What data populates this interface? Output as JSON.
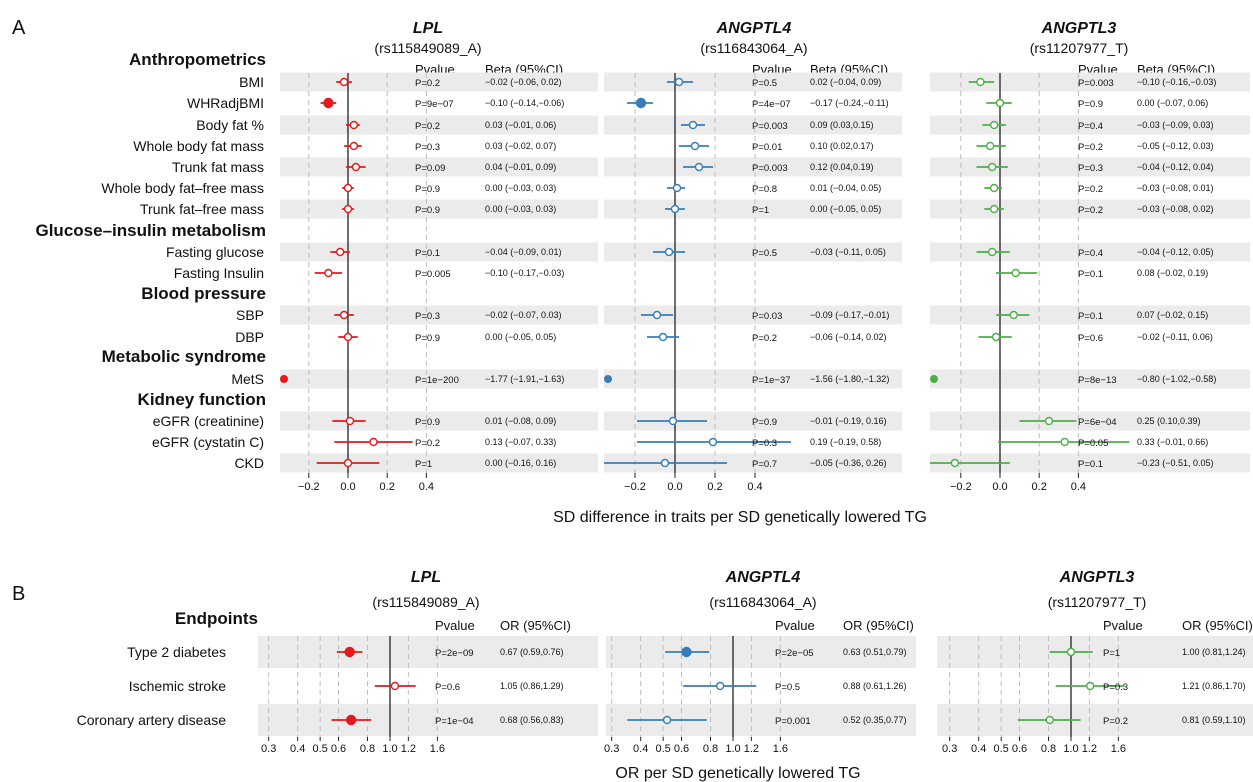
{
  "panel_a": {
    "label": "A",
    "x_axis_title": "SD difference in traits per SD genetically lowered TG",
    "pvalue_header": "Pvalue",
    "beta_header": "Beta (95%CI)",
    "groups": [
      {
        "name": "Anthropometrics",
        "traits": [
          "BMI",
          "WHRadjBMI",
          "Body fat %",
          "Whole body fat mass",
          "Trunk fat mass",
          "Whole body fat–free mass",
          "Trunk fat–free mass"
        ]
      },
      {
        "name": "Glucose–insulin metabolism",
        "traits": [
          "Fasting glucose",
          "Fasting Insulin"
        ]
      },
      {
        "name": "Blood pressure",
        "traits": [
          "SBP",
          "DBP"
        ]
      },
      {
        "name": "Metabolic syndrome",
        "traits": [
          "MetS"
        ]
      },
      {
        "name": "Kidney function",
        "traits": [
          "eGFR (creatinine)",
          "eGFR (cystatin C)",
          "CKD"
        ]
      }
    ],
    "ticks": [
      "−0.2",
      "0.0",
      "0.2",
      "0.4"
    ]
  },
  "panel_b": {
    "label": "B",
    "x_axis_title": "OR per SD genetically lowered TG",
    "group": "Endpoints",
    "pvalue_header": "Pvalue",
    "or_header": "OR (95%CI)",
    "endpoints": [
      "Type 2 diabetes",
      "Ischemic stroke",
      "Coronary artery disease"
    ],
    "ticks": [
      "0.3",
      "0.4",
      "0.5",
      "0.6",
      "0.8",
      "1.0",
      "1.2",
      "1.6"
    ]
  },
  "colors": {
    "LPL": "#e41a1c",
    "ANGPTL4": "#377eb8",
    "ANGPTL3": "#4daf4a",
    "band": "#ebebeb",
    "grid": "#bdbdbd"
  },
  "chart_data": [
    {
      "type": "scatter",
      "subtype": "forest",
      "panel": "A",
      "xlim": [
        -0.35,
        0.4
      ],
      "grid": true,
      "series": [
        {
          "name": "LPL",
          "snp": "(rs115849089_A)",
          "rows": [
            {
              "trait": "BMI",
              "est": -0.02,
              "lo": -0.06,
              "hi": 0.02,
              "p": "P=0.2",
              "ci": "−0.02 (−0.06, 0.02)",
              "sig": false
            },
            {
              "trait": "WHRadjBMI",
              "est": -0.1,
              "lo": -0.14,
              "hi": -0.06,
              "p": "P=9e−07",
              "ci": "−0.10 (−0.14,−0.06)",
              "sig": true
            },
            {
              "trait": "Body fat %",
              "est": 0.03,
              "lo": -0.01,
              "hi": 0.06,
              "p": "P=0.2",
              "ci": "0.03 (−0.01, 0.06)",
              "sig": false
            },
            {
              "trait": "Whole body fat mass",
              "est": 0.03,
              "lo": -0.02,
              "hi": 0.07,
              "p": "P=0.3",
              "ci": "0.03 (−0.02, 0.07)",
              "sig": false
            },
            {
              "trait": "Trunk fat mass",
              "est": 0.04,
              "lo": -0.01,
              "hi": 0.09,
              "p": "P=0.09",
              "ci": "0.04 (−0.01, 0.09)",
              "sig": false
            },
            {
              "trait": "Whole body fat–free mass",
              "est": 0.0,
              "lo": -0.03,
              "hi": 0.03,
              "p": "P=0.9",
              "ci": "0.00 (−0.03, 0.03)",
              "sig": false
            },
            {
              "trait": "Trunk fat–free mass",
              "est": 0.0,
              "lo": -0.03,
              "hi": 0.03,
              "p": "P=0.9",
              "ci": "0.00 (−0.03, 0.03)",
              "sig": false
            },
            {
              "trait": "Fasting glucose",
              "est": -0.04,
              "lo": -0.09,
              "hi": 0.01,
              "p": "P=0.1",
              "ci": "−0.04 (−0.09, 0.01)",
              "sig": false
            },
            {
              "trait": "Fasting Insulin",
              "est": -0.1,
              "lo": -0.17,
              "hi": -0.03,
              "p": "P=0.005",
              "ci": "−0.10 (−0.17,−0.03)",
              "sig": false
            },
            {
              "trait": "SBP",
              "est": -0.02,
              "lo": -0.07,
              "hi": 0.03,
              "p": "P=0.3",
              "ci": "−0.02 (−0.07, 0.03)",
              "sig": false
            },
            {
              "trait": "DBP",
              "est": 0.0,
              "lo": -0.05,
              "hi": 0.05,
              "p": "P=0.9",
              "ci": "0.00 (−0.05, 0.05)",
              "sig": false
            },
            {
              "trait": "MetS",
              "est": -1.77,
              "lo": -1.91,
              "hi": -1.63,
              "p": "P=1e−200",
              "ci": "−1.77 (−1.91,−1.63)",
              "sig": true
            },
            {
              "trait": "eGFR (creatinine)",
              "est": 0.01,
              "lo": -0.08,
              "hi": 0.09,
              "p": "P=0.9",
              "ci": "0.01 (−0.08, 0.09)",
              "sig": false
            },
            {
              "trait": "eGFR (cystatin C)",
              "est": 0.13,
              "lo": -0.07,
              "hi": 0.33,
              "p": "P=0.2",
              "ci": "0.13 (−0.07, 0.33)",
              "sig": false
            },
            {
              "trait": "CKD",
              "est": 0.0,
              "lo": -0.16,
              "hi": 0.16,
              "p": "P=1",
              "ci": "0.00 (−0.16, 0.16)",
              "sig": false
            }
          ]
        },
        {
          "name": "ANGPTL4",
          "snp": "(rs116843064_A)",
          "rows": [
            {
              "trait": "BMI",
              "est": 0.02,
              "lo": -0.04,
              "hi": 0.09,
              "p": "P=0.5",
              "ci": "0.02 (−0.04, 0.09)",
              "sig": false
            },
            {
              "trait": "WHRadjBMI",
              "est": -0.17,
              "lo": -0.24,
              "hi": -0.11,
              "p": "P=4e−07",
              "ci": "−0.17 (−0.24,−0.11)",
              "sig": true
            },
            {
              "trait": "Body fat %",
              "est": 0.09,
              "lo": 0.03,
              "hi": 0.15,
              "p": "P=0.003",
              "ci": "0.09 (0.03,0.15)",
              "sig": false
            },
            {
              "trait": "Whole body fat mass",
              "est": 0.1,
              "lo": 0.02,
              "hi": 0.17,
              "p": "P=0.01",
              "ci": "0.10 (0.02,0.17)",
              "sig": false
            },
            {
              "trait": "Trunk fat mass",
              "est": 0.12,
              "lo": 0.04,
              "hi": 0.19,
              "p": "P=0.003",
              "ci": "0.12 (0.04,0.19)",
              "sig": false
            },
            {
              "trait": "Whole body fat–free mass",
              "est": 0.01,
              "lo": -0.04,
              "hi": 0.05,
              "p": "P=0.8",
              "ci": "0.01 (−0.04, 0.05)",
              "sig": false
            },
            {
              "trait": "Trunk fat–free mass",
              "est": 0.0,
              "lo": -0.05,
              "hi": 0.05,
              "p": "P=1",
              "ci": "0.00 (−0.05, 0.05)",
              "sig": false
            },
            {
              "trait": "Fasting glucose",
              "est": -0.03,
              "lo": -0.11,
              "hi": 0.05,
              "p": "P=0.5",
              "ci": "−0.03 (−0.11, 0.05)",
              "sig": false
            },
            {
              "trait": "Fasting Insulin",
              "est": null,
              "lo": null,
              "hi": null,
              "p": "",
              "ci": "",
              "sig": false
            },
            {
              "trait": "SBP",
              "est": -0.09,
              "lo": -0.17,
              "hi": -0.01,
              "p": "P=0.03",
              "ci": "−0.09 (−0.17,−0.01)",
              "sig": false
            },
            {
              "trait": "DBP",
              "est": -0.06,
              "lo": -0.14,
              "hi": 0.02,
              "p": "P=0.2",
              "ci": "−0.06 (−0.14, 0.02)",
              "sig": false
            },
            {
              "trait": "MetS",
              "est": -1.56,
              "lo": -1.8,
              "hi": -1.32,
              "p": "P=1e−37",
              "ci": "−1.56 (−1.80,−1.32)",
              "sig": true
            },
            {
              "trait": "eGFR (creatinine)",
              "est": -0.01,
              "lo": -0.19,
              "hi": 0.16,
              "p": "P=0.9",
              "ci": "−0.01 (−0.19, 0.16)",
              "sig": false
            },
            {
              "trait": "eGFR (cystatin C)",
              "est": 0.19,
              "lo": -0.19,
              "hi": 0.58,
              "p": "P=0.3",
              "ci": "0.19 (−0.19, 0.58)",
              "sig": false
            },
            {
              "trait": "CKD",
              "est": -0.05,
              "lo": -0.36,
              "hi": 0.26,
              "p": "P=0.7",
              "ci": "−0.05 (−0.36, 0.26)",
              "sig": false
            }
          ]
        },
        {
          "name": "ANGPTL3",
          "snp": "(rs11207977_T)",
          "rows": [
            {
              "trait": "BMI",
              "est": -0.1,
              "lo": -0.16,
              "hi": -0.03,
              "p": "P=0.003",
              "ci": "−0.10 (−0.16,−0.03)",
              "sig": false
            },
            {
              "trait": "WHRadjBMI",
              "est": 0.0,
              "lo": -0.07,
              "hi": 0.06,
              "p": "P=0.9",
              "ci": "0.00 (−0.07, 0.06)",
              "sig": false
            },
            {
              "trait": "Body fat %",
              "est": -0.03,
              "lo": -0.09,
              "hi": 0.03,
              "p": "P=0.4",
              "ci": "−0.03 (−0.09, 0.03)",
              "sig": false
            },
            {
              "trait": "Whole body fat mass",
              "est": -0.05,
              "lo": -0.12,
              "hi": 0.03,
              "p": "P=0.2",
              "ci": "−0.05 (−0.12, 0.03)",
              "sig": false
            },
            {
              "trait": "Trunk fat mass",
              "est": -0.04,
              "lo": -0.12,
              "hi": 0.04,
              "p": "P=0.3",
              "ci": "−0.04 (−0.12, 0.04)",
              "sig": false
            },
            {
              "trait": "Whole body fat–free mass",
              "est": -0.03,
              "lo": -0.08,
              "hi": 0.01,
              "p": "P=0.2",
              "ci": "−0.03 (−0.08, 0.01)",
              "sig": false
            },
            {
              "trait": "Trunk fat–free mass",
              "est": -0.03,
              "lo": -0.08,
              "hi": 0.02,
              "p": "P=0.2",
              "ci": "−0.03 (−0.08, 0.02)",
              "sig": false
            },
            {
              "trait": "Fasting glucose",
              "est": -0.04,
              "lo": -0.12,
              "hi": 0.05,
              "p": "P=0.4",
              "ci": "−0.04 (−0.12, 0.05)",
              "sig": false
            },
            {
              "trait": "Fasting Insulin",
              "est": 0.08,
              "lo": -0.02,
              "hi": 0.19,
              "p": "P=0.1",
              "ci": "0.08 (−0.02, 0.19)",
              "sig": false
            },
            {
              "trait": "SBP",
              "est": 0.07,
              "lo": -0.02,
              "hi": 0.15,
              "p": "P=0.1",
              "ci": "0.07 (−0.02, 0.15)",
              "sig": false
            },
            {
              "trait": "DBP",
              "est": -0.02,
              "lo": -0.11,
              "hi": 0.06,
              "p": "P=0.6",
              "ci": "−0.02 (−0.11, 0.06)",
              "sig": false
            },
            {
              "trait": "MetS",
              "est": -0.8,
              "lo": -1.02,
              "hi": -0.58,
              "p": "P=8e−13",
              "ci": "−0.80 (−1.02,−0.58)",
              "sig": true
            },
            {
              "trait": "eGFR (creatinine)",
              "est": 0.25,
              "lo": 0.1,
              "hi": 0.39,
              "p": "P=6e−04",
              "ci": "0.25 (0.10,0.39)",
              "sig": false
            },
            {
              "trait": "eGFR (cystatin C)",
              "est": 0.33,
              "lo": -0.01,
              "hi": 0.66,
              "p": "P=0.05",
              "ci": "0.33 (−0.01, 0.66)",
              "sig": false
            },
            {
              "trait": "CKD",
              "est": -0.23,
              "lo": -0.51,
              "hi": 0.05,
              "p": "P=0.1",
              "ci": "−0.23 (−0.51, 0.05)",
              "sig": false
            }
          ]
        }
      ]
    },
    {
      "type": "scatter",
      "subtype": "forest",
      "panel": "B",
      "xscale": "log",
      "xlim": [
        0.3,
        1.6
      ],
      "grid": true,
      "series": [
        {
          "name": "LPL",
          "snp": "(rs115849089_A)",
          "rows": [
            {
              "trait": "Type 2 diabetes",
              "est": 0.67,
              "lo": 0.59,
              "hi": 0.76,
              "p": "P=2e−09",
              "ci": "0.67 (0.59,0.76)",
              "sig": true
            },
            {
              "trait": "Ischemic stroke",
              "est": 1.05,
              "lo": 0.86,
              "hi": 1.29,
              "p": "P=0.6",
              "ci": "1.05 (0.86,1.29)",
              "sig": false
            },
            {
              "trait": "Coronary artery disease",
              "est": 0.68,
              "lo": 0.56,
              "hi": 0.83,
              "p": "P=1e−04",
              "ci": "0.68 (0.56,0.83)",
              "sig": true
            }
          ]
        },
        {
          "name": "ANGPTL4",
          "snp": "(rs116843064_A)",
          "rows": [
            {
              "trait": "Type 2 diabetes",
              "est": 0.63,
              "lo": 0.51,
              "hi": 0.79,
              "p": "P=2e−05",
              "ci": "0.63 (0.51,0.79)",
              "sig": true
            },
            {
              "trait": "Ischemic stroke",
              "est": 0.88,
              "lo": 0.61,
              "hi": 1.26,
              "p": "P=0.5",
              "ci": "0.88 (0.61,1.26)",
              "sig": false
            },
            {
              "trait": "Coronary artery disease",
              "est": 0.52,
              "lo": 0.35,
              "hi": 0.77,
              "p": "P=0.001",
              "ci": "0.52 (0.35,0.77)",
              "sig": false
            }
          ]
        },
        {
          "name": "ANGPTL3",
          "snp": "(rs11207977_T)",
          "rows": [
            {
              "trait": "Type 2 diabetes",
              "est": 1.0,
              "lo": 0.81,
              "hi": 1.24,
              "p": "P=1",
              "ci": "1.00 (0.81,1.24)",
              "sig": false
            },
            {
              "trait": "Ischemic stroke",
              "est": 1.21,
              "lo": 0.86,
              "hi": 1.7,
              "p": "P=0.3",
              "ci": "1.21 (0.86,1.70)",
              "sig": false
            },
            {
              "trait": "Coronary artery disease",
              "est": 0.81,
              "lo": 0.59,
              "hi": 1.1,
              "p": "P=0.2",
              "ci": "0.81 (0.59,1.10)",
              "sig": false
            }
          ]
        }
      ]
    }
  ]
}
